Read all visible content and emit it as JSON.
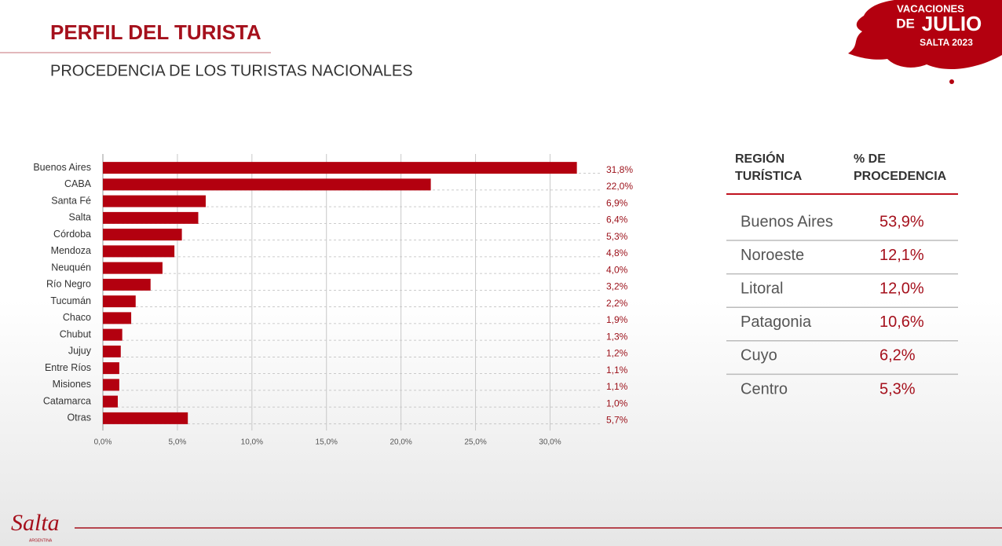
{
  "header": {
    "title": "PERFIL DEL TURISTA",
    "subtitle": "PROCEDENCIA DE LOS TURISTAS NACIONALES"
  },
  "badge": {
    "line1": "VACACIONES",
    "line2a": "DE",
    "line2b": "JULIO",
    "line3": "SALTA 2023"
  },
  "chart_data": {
    "type": "hbar",
    "categories": [
      "Buenos Aires",
      "CABA",
      "Santa Fé",
      "Salta",
      "Córdoba",
      "Mendoza",
      "Neuquén",
      "Río Negro",
      "Tucumán",
      "Chaco",
      "Chubut",
      "Jujuy",
      "Entre Ríos",
      "Misiones",
      "Catamarca",
      "Otras"
    ],
    "values": [
      31.8,
      22.0,
      6.9,
      6.4,
      5.3,
      4.8,
      4.0,
      3.2,
      2.2,
      1.9,
      1.3,
      1.2,
      1.1,
      1.1,
      1.0,
      5.7
    ],
    "value_labels": [
      "31,8%",
      "22,0%",
      "6,9%",
      "6,4%",
      "5,3%",
      "4,8%",
      "4,0%",
      "3,2%",
      "2,2%",
      "1,9%",
      "1,3%",
      "1,2%",
      "1,1%",
      "1,1%",
      "1,0%",
      "5,7%"
    ],
    "color": "#b3000f",
    "xlim": [
      0,
      33.4
    ],
    "xticks": [
      {
        "value": 0,
        "label": "0,0%"
      },
      {
        "value": 5,
        "label": "5,0%"
      },
      {
        "value": 10,
        "label": "10,0%"
      },
      {
        "value": 15,
        "label": "15,0%"
      },
      {
        "value": 20,
        "label": "20,0%"
      },
      {
        "value": 25,
        "label": "25,0%"
      },
      {
        "value": 30,
        "label": "30,0%"
      }
    ],
    "grid": true
  },
  "table": {
    "header": [
      [
        "REGIÓN",
        "TURÍSTICA"
      ],
      [
        "% DE",
        "PROCEDENCIA"
      ]
    ],
    "rows": [
      [
        "Buenos Aires",
        "53,9%"
      ],
      [
        "Noroeste",
        "12,1%"
      ],
      [
        "Litoral",
        "12,0%"
      ],
      [
        "Patagonia",
        "10,6%"
      ],
      [
        "Cuyo",
        "6,2%"
      ],
      [
        "Centro",
        "5,3%"
      ]
    ]
  },
  "footer": {
    "logo": "Salta",
    "logo_sub": "ARGENTINA"
  }
}
